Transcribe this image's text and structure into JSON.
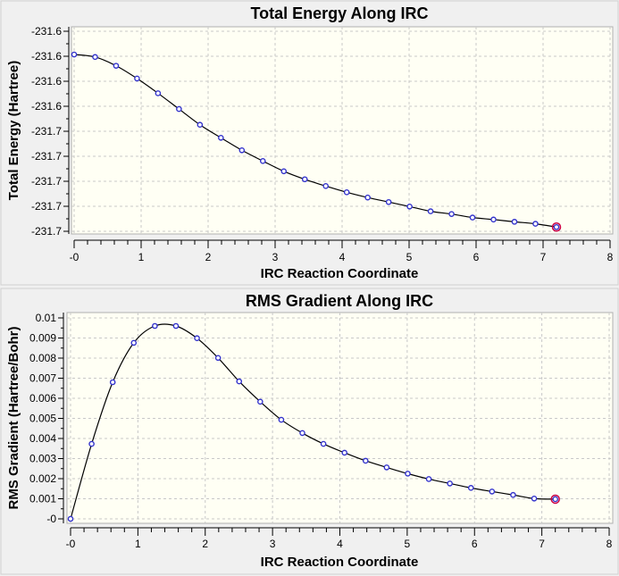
{
  "chart_data": [
    {
      "type": "line",
      "title": "Total Energy Along IRC",
      "xlabel": "IRC Reaction Coordinate",
      "ylabel": "Total Energy (Hartree)",
      "xlim": [
        0,
        8
      ],
      "ylim": [
        -231.69,
        -231.61
      ],
      "xticks": [
        0,
        1,
        2,
        3,
        4,
        5,
        6,
        7,
        8
      ],
      "xtick_labels": [
        "-0",
        "1",
        "2",
        "3",
        "4",
        "5",
        "6",
        "7",
        "8"
      ],
      "yticks": [
        -231.61,
        -231.62,
        -231.63,
        -231.64,
        -231.65,
        -231.66,
        -231.67,
        -231.68,
        -231.69
      ],
      "ytick_labels": [
        "-231.6",
        "-231.6",
        "-231.6",
        "-231.6",
        "-231.7",
        "-231.7",
        "-231.7",
        "-231.7",
        "-231.7"
      ],
      "grid": true,
      "x": [
        0,
        0.313,
        0.626,
        0.939,
        1.252,
        1.565,
        1.878,
        2.191,
        2.504,
        2.817,
        3.13,
        3.443,
        3.756,
        4.069,
        4.382,
        4.695,
        5.008,
        5.321,
        5.634,
        5.947,
        6.26,
        6.573,
        6.886,
        7.2
      ],
      "y": [
        -231.6193,
        -231.6203,
        -231.6238,
        -231.6289,
        -231.6348,
        -231.6411,
        -231.6474,
        -231.6526,
        -231.6576,
        -231.6619,
        -231.666,
        -231.6692,
        -231.6719,
        -231.6744,
        -231.6765,
        -231.6783,
        -231.6801,
        -231.682,
        -231.6831,
        -231.6845,
        -231.6853,
        -231.6862,
        -231.687,
        -231.6883
      ],
      "highlight_index": 23
    },
    {
      "type": "line",
      "title": "RMS Gradient Along IRC",
      "xlabel": "IRC Reaction Coordinate",
      "ylabel": "RMS Gradient (Hartree/Bohr)",
      "xlim": [
        0,
        8
      ],
      "ylim": [
        0,
        0.01
      ],
      "xticks": [
        0,
        1,
        2,
        3,
        4,
        5,
        6,
        7,
        8
      ],
      "xtick_labels": [
        "-0",
        "1",
        "2",
        "3",
        "4",
        "5",
        "6",
        "7",
        "8"
      ],
      "yticks": [
        0.01,
        0.009,
        0.008,
        0.007,
        0.006,
        0.005,
        0.004,
        0.003,
        0.002,
        0.001,
        0
      ],
      "ytick_labels": [
        "0.01",
        "0.009",
        "0.008",
        "0.007",
        "0.006",
        "0.005",
        "0.004",
        "0.003",
        "0.002",
        "0.001",
        "-0"
      ],
      "grid": true,
      "x": [
        0,
        0.313,
        0.626,
        0.939,
        1.252,
        1.565,
        1.878,
        2.191,
        2.504,
        2.817,
        3.13,
        3.443,
        3.756,
        4.069,
        4.382,
        4.695,
        5.008,
        5.321,
        5.634,
        5.947,
        6.26,
        6.573,
        6.886,
        7.2
      ],
      "y": [
        0.0,
        0.00373,
        0.0068,
        0.00876,
        0.0096,
        0.0096,
        0.00899,
        0.00801,
        0.00684,
        0.00583,
        0.00493,
        0.00427,
        0.00373,
        0.00329,
        0.00289,
        0.00256,
        0.00225,
        0.00198,
        0.00176,
        0.00154,
        0.00136,
        0.00119,
        0.00101,
        0.00098
      ],
      "highlight_index": 23
    }
  ],
  "colors": {
    "plot_bg": "#fffff4",
    "line": "#000000",
    "marker": "#3333cc",
    "highlight": "#cc0044",
    "panel_bg": "#f0f0f0"
  }
}
